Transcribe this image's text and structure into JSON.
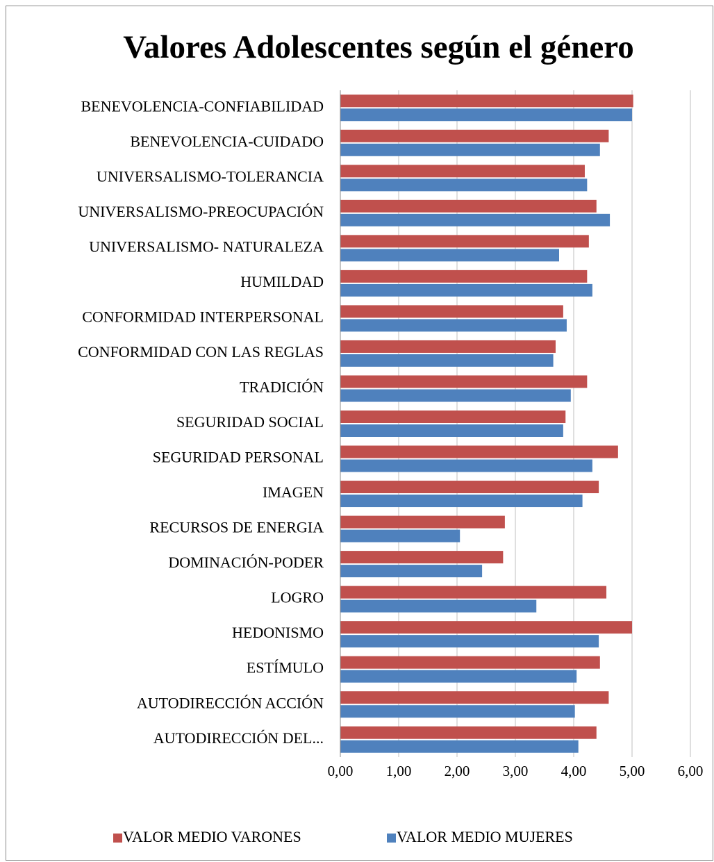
{
  "chart_data": {
    "type": "hbar",
    "title": "Valores Adolescentes según el género",
    "categories": [
      "BENEVOLENCIA-CONFIABILIDAD",
      "BENEVOLENCIA-CUIDADO",
      "UNIVERSALISMO-TOLERANCIA",
      "UNIVERSALISMO-PREOCUPACIÓN",
      "UNIVERSALISMO- NATURALEZA",
      "HUMILDAD",
      "CONFORMIDAD INTERPERSONAL",
      "CONFORMIDAD CON LAS REGLAS",
      "TRADICIÓN",
      "SEGURIDAD SOCIAL",
      "SEGURIDAD PERSONAL",
      "IMAGEN",
      "RECURSOS DE ENERGIA",
      "DOMINACIÓN-PODER",
      "LOGRO",
      "HEDONISMO",
      "ESTÍMULO",
      "AUTODIRECCIÓN ACCIÓN",
      "AUTODIRECCIÓN DEL..."
    ],
    "series": [
      {
        "name": "VALOR MEDIO VARONES",
        "color": "#c0504d",
        "values": [
          5.02,
          4.6,
          4.19,
          4.39,
          4.26,
          4.23,
          3.82,
          3.69,
          4.23,
          3.86,
          4.76,
          4.43,
          2.82,
          2.79,
          4.56,
          5.0,
          4.45,
          4.6,
          4.39
        ]
      },
      {
        "name": "VALOR MEDIO MUJERES",
        "color": "#4f81bd",
        "values": [
          5.0,
          4.45,
          4.23,
          4.62,
          3.75,
          4.32,
          3.88,
          3.65,
          3.95,
          3.82,
          4.32,
          4.15,
          2.05,
          2.43,
          3.36,
          4.43,
          4.05,
          4.02,
          4.08
        ]
      }
    ],
    "xlim": [
      0,
      6
    ],
    "xticks": [
      {
        "value": 0,
        "label": "0,00"
      },
      {
        "value": 1,
        "label": "1,00"
      },
      {
        "value": 2,
        "label": "2,00"
      },
      {
        "value": 3,
        "label": "3,00"
      },
      {
        "value": 4,
        "label": "4,00"
      },
      {
        "value": 5,
        "label": "5,00"
      },
      {
        "value": 6,
        "label": "6,00"
      }
    ],
    "grid": true,
    "legend": "bottom"
  }
}
